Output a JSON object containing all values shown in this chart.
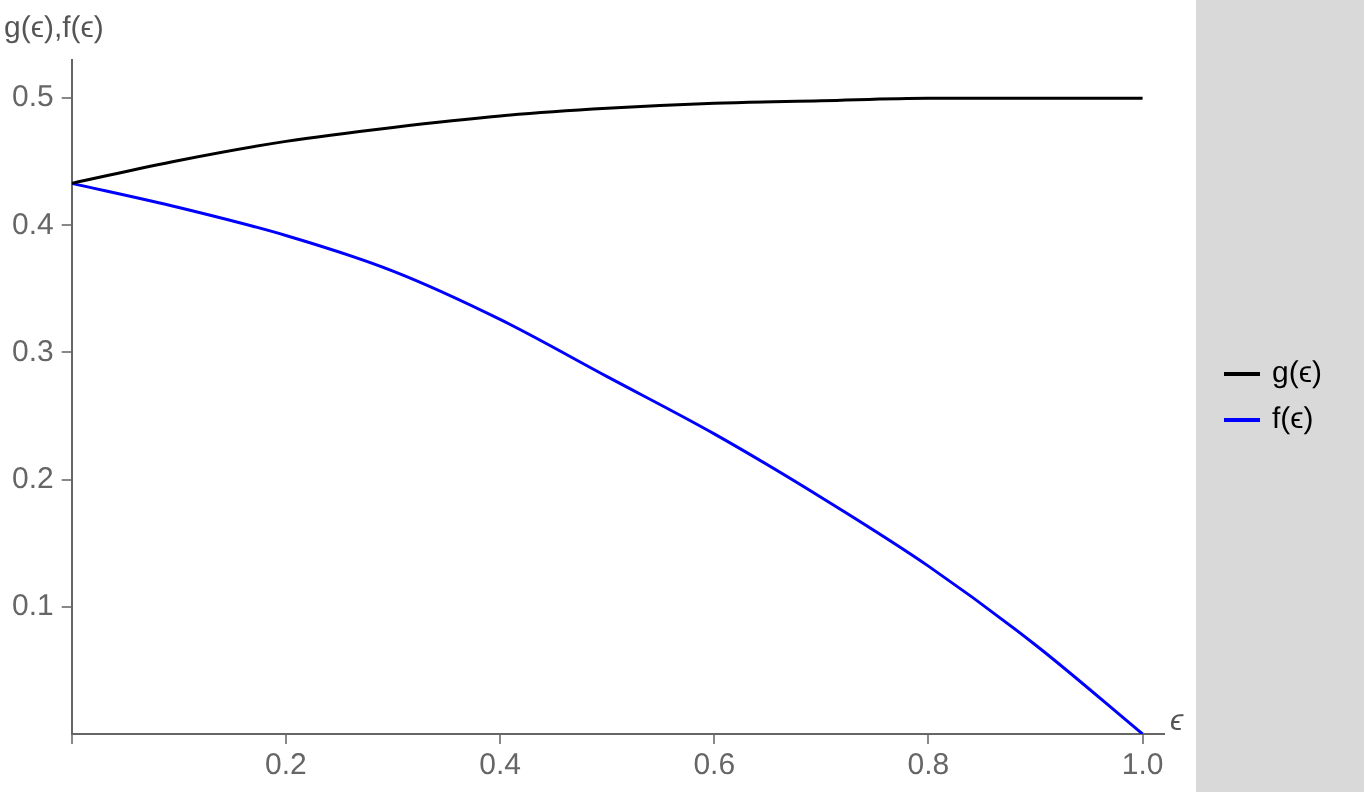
{
  "chart_data": {
    "type": "line",
    "ylabel": "g(ϵ),f(ϵ)",
    "xlabel": "ϵ",
    "x": [
      0,
      0.1,
      0.2,
      0.3,
      0.4,
      0.5,
      0.6,
      0.7,
      0.8,
      0.9,
      1.0
    ],
    "series": [
      {
        "name": "g(ϵ)",
        "color": "#000000",
        "values": [
          0.433,
          0.451,
          0.466,
          0.477,
          0.486,
          0.492,
          0.496,
          0.498,
          0.5,
          0.5,
          0.5
        ]
      },
      {
        "name": "f(ϵ)",
        "color": "#0000ff",
        "values": [
          0.433,
          0.414,
          0.392,
          0.364,
          0.326,
          0.281,
          0.236,
          0.186,
          0.132,
          0.07,
          0
        ]
      }
    ],
    "xlim": [
      0,
      1.02
    ],
    "ylim": [
      0,
      0.53
    ],
    "xticks": [
      {
        "value": 0,
        "label": null
      },
      0.2,
      0.4,
      0.6,
      0.8,
      {
        "value": 1,
        "label": "1.0"
      }
    ],
    "yticks": [
      0.1,
      0.2,
      0.3,
      0.4,
      0.5
    ],
    "grid": false,
    "legend": "right",
    "marker": "none",
    "line_style": "solid"
  }
}
